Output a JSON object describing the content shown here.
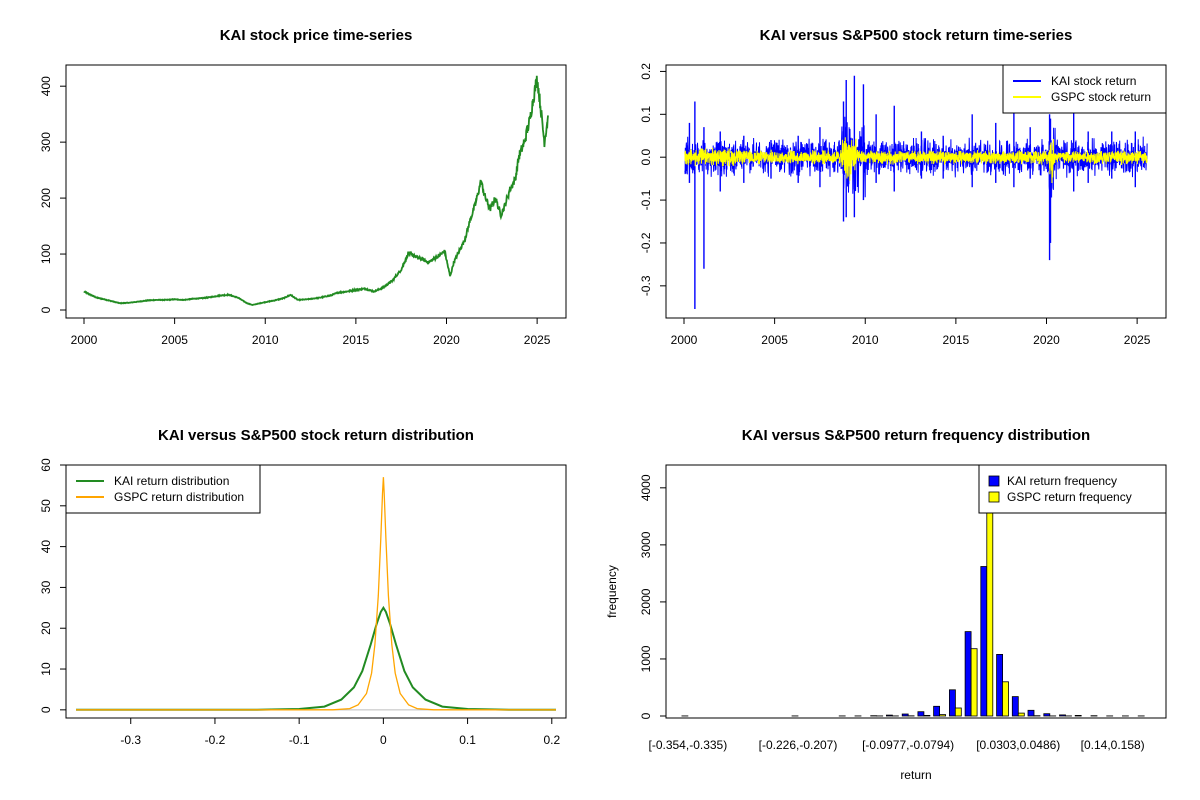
{
  "chart_data": [
    {
      "type": "line",
      "title": "KAI stock price time-series",
      "xlabel": "",
      "ylabel": "",
      "xlim": [
        2000,
        2025.6
      ],
      "ylim": [
        0,
        420
      ],
      "xticks": [
        2000,
        2005,
        2010,
        2015,
        2020,
        2025
      ],
      "yticks": [
        0,
        100,
        200,
        300,
        400
      ],
      "colors": {
        "series": "#228B22"
      },
      "series": [
        {
          "x": [
            2000.0,
            2000.3,
            2000.7,
            2001.0,
            2001.5,
            2002.0,
            2002.5,
            2003.0,
            2003.5,
            2004.0,
            2004.5,
            2005.0,
            2005.5,
            2006.0,
            2006.5,
            2007.0,
            2007.5,
            2008.0,
            2008.5,
            2009.0,
            2009.3,
            2009.7,
            2010.0,
            2010.5,
            2011.0,
            2011.4,
            2011.8,
            2012.3,
            2013.0,
            2013.6,
            2014.0,
            2014.5,
            2015.0,
            2015.5,
            2016.0,
            2016.5,
            2017.0,
            2017.5,
            2017.9,
            2018.3,
            2018.7,
            2019.0,
            2019.5,
            2019.9,
            2020.2,
            2020.4,
            2020.7,
            2021.0,
            2021.3,
            2021.6,
            2021.9,
            2022.1,
            2022.4,
            2022.7,
            2023.0,
            2023.2,
            2023.5,
            2023.8,
            2024.0,
            2024.3,
            2024.6,
            2024.8,
            2025.0,
            2025.2,
            2025.4,
            2025.6
          ],
          "y": [
            33,
            28,
            22,
            20,
            16,
            12,
            13,
            15,
            17,
            18,
            18,
            19,
            18,
            20,
            21,
            23,
            26,
            27,
            22,
            12,
            9,
            12,
            14,
            17,
            21,
            27,
            18,
            19,
            22,
            26,
            31,
            33,
            36,
            38,
            33,
            40,
            52,
            72,
            102,
            95,
            90,
            85,
            95,
            105,
            60,
            85,
            105,
            125,
            160,
            190,
            230,
            205,
            180,
            200,
            170,
            185,
            215,
            235,
            275,
            300,
            340,
            380,
            415,
            360,
            300,
            345
          ]
        }
      ]
    },
    {
      "type": "line",
      "title": "KAI versus S&P500 stock return time-series",
      "xlabel": "",
      "ylabel": "",
      "xlim": [
        2000,
        2025.6
      ],
      "ylim": [
        -0.354,
        0.194
      ],
      "xticks": [
        2000,
        2005,
        2010,
        2015,
        2020,
        2025
      ],
      "yticks": [
        -0.3,
        -0.2,
        -0.1,
        0.0,
        0.1,
        0.2
      ],
      "ytick_labels": [
        "-0.3",
        "-0.2",
        "-0.1",
        "0.0",
        "0.1",
        "0.2"
      ],
      "legend": "top-right",
      "series": [
        {
          "name": "KAI stock return",
          "color": "#0000FF",
          "x": [
            2000.3,
            2000.6,
            2001.1,
            2002.0,
            2003.3,
            2004.8,
            2006.3,
            2007.5,
            2008.8,
            2008.95,
            2009.4,
            2009.9,
            2010.6,
            2011.6,
            2013.1,
            2014.3,
            2015.9,
            2017.2,
            2018.2,
            2019.1,
            2020.17,
            2020.22,
            2021.5,
            2022.3,
            2023.6,
            2024.9
          ],
          "hi": [
            0.08,
            0.13,
            0.07,
            0.06,
            0.05,
            0.04,
            0.05,
            0.07,
            0.13,
            0.18,
            0.19,
            0.17,
            0.1,
            0.12,
            0.06,
            0.05,
            0.1,
            0.08,
            0.11,
            0.07,
            0.1,
            0.09,
            0.12,
            0.06,
            0.06,
            0.06
          ],
          "lo": [
            -0.06,
            -0.354,
            -0.26,
            -0.08,
            -0.06,
            -0.05,
            -0.06,
            -0.07,
            -0.15,
            -0.14,
            -0.14,
            -0.1,
            -0.06,
            -0.08,
            -0.05,
            -0.05,
            -0.07,
            -0.06,
            -0.07,
            -0.05,
            -0.24,
            -0.2,
            -0.08,
            -0.06,
            -0.05,
            -0.07
          ],
          "noise_amplitude": 0.035
        },
        {
          "name": "GSPC stock return",
          "color": "#FFFF00",
          "noise_amplitude": 0.015,
          "crisis_2008_amplitude": 0.05,
          "crisis_2020_amplitude": 0.06
        }
      ]
    },
    {
      "type": "line",
      "title": "KAI versus S&P500 stock return distribution",
      "xlabel": "",
      "ylabel": "",
      "xlim": [
        -0.365,
        0.205
      ],
      "ylim": [
        -2,
        60
      ],
      "xticks": [
        -0.3,
        -0.2,
        -0.1,
        0.0,
        0.1,
        0.2
      ],
      "yticks": [
        0,
        10,
        20,
        30,
        40,
        50,
        60
      ],
      "legend": "top-left",
      "series": [
        {
          "name": "KAI return distribution",
          "color": "#228B22",
          "x": [
            -0.365,
            -0.15,
            -0.1,
            -0.07,
            -0.05,
            -0.035,
            -0.025,
            -0.015,
            -0.008,
            -0.003,
            0.0,
            0.003,
            0.008,
            0.015,
            0.025,
            0.035,
            0.05,
            0.07,
            0.1,
            0.15,
            0.205
          ],
          "y": [
            0,
            0,
            0.2,
            0.8,
            2.5,
            5.5,
            9.5,
            16,
            21,
            24,
            25,
            24,
            21,
            16,
            9.5,
            5.5,
            2.5,
            0.8,
            0.2,
            0,
            0
          ]
        },
        {
          "name": "GSPC return distribution",
          "color": "#FFA500",
          "x": [
            -0.365,
            -0.06,
            -0.04,
            -0.03,
            -0.02,
            -0.014,
            -0.01,
            -0.006,
            -0.003,
            -0.001,
            0.0,
            0.001,
            0.003,
            0.006,
            0.01,
            0.014,
            0.02,
            0.03,
            0.04,
            0.06,
            0.205
          ],
          "y": [
            0,
            0,
            0.3,
            1.2,
            4,
            9,
            16,
            28,
            42,
            53,
            57,
            53,
            42,
            28,
            16,
            9,
            4,
            1.2,
            0.3,
            0,
            0
          ]
        }
      ]
    },
    {
      "type": "bar",
      "title": "KAI versus S&P500 return frequency distribution",
      "xlabel": "return",
      "ylabel": "frequency",
      "ylim": [
        0,
        4400
      ],
      "yticks": [
        0,
        1000,
        2000,
        3000,
        4000
      ],
      "xtick_labels": [
        "[-0.354,-0.335)",
        "[-0.226,-0.207)",
        "[-0.0977,-0.0794)",
        "[0.0303,0.0486)",
        "[0.14,0.158)"
      ],
      "xtick_bins": [
        0,
        7,
        14,
        21,
        27
      ],
      "legend": "top-right",
      "bins": 30,
      "series": [
        {
          "name": "KAI return frequency",
          "color": "#0000FF",
          "values": [
            1,
            0,
            0,
            0,
            0,
            0,
            0,
            1,
            0,
            0,
            1,
            2,
            6,
            15,
            35,
            75,
            170,
            460,
            1480,
            2620,
            1080,
            340,
            100,
            40,
            20,
            10,
            6,
            2,
            1,
            1
          ]
        },
        {
          "name": "GSPC return frequency",
          "color": "#FFFF00",
          "values": [
            0,
            0,
            0,
            0,
            0,
            0,
            0,
            0,
            0,
            0,
            0,
            0,
            1,
            2,
            4,
            10,
            25,
            140,
            1180,
            4400,
            600,
            50,
            6,
            2,
            1,
            0,
            0,
            0,
            0,
            0
          ]
        }
      ]
    }
  ]
}
